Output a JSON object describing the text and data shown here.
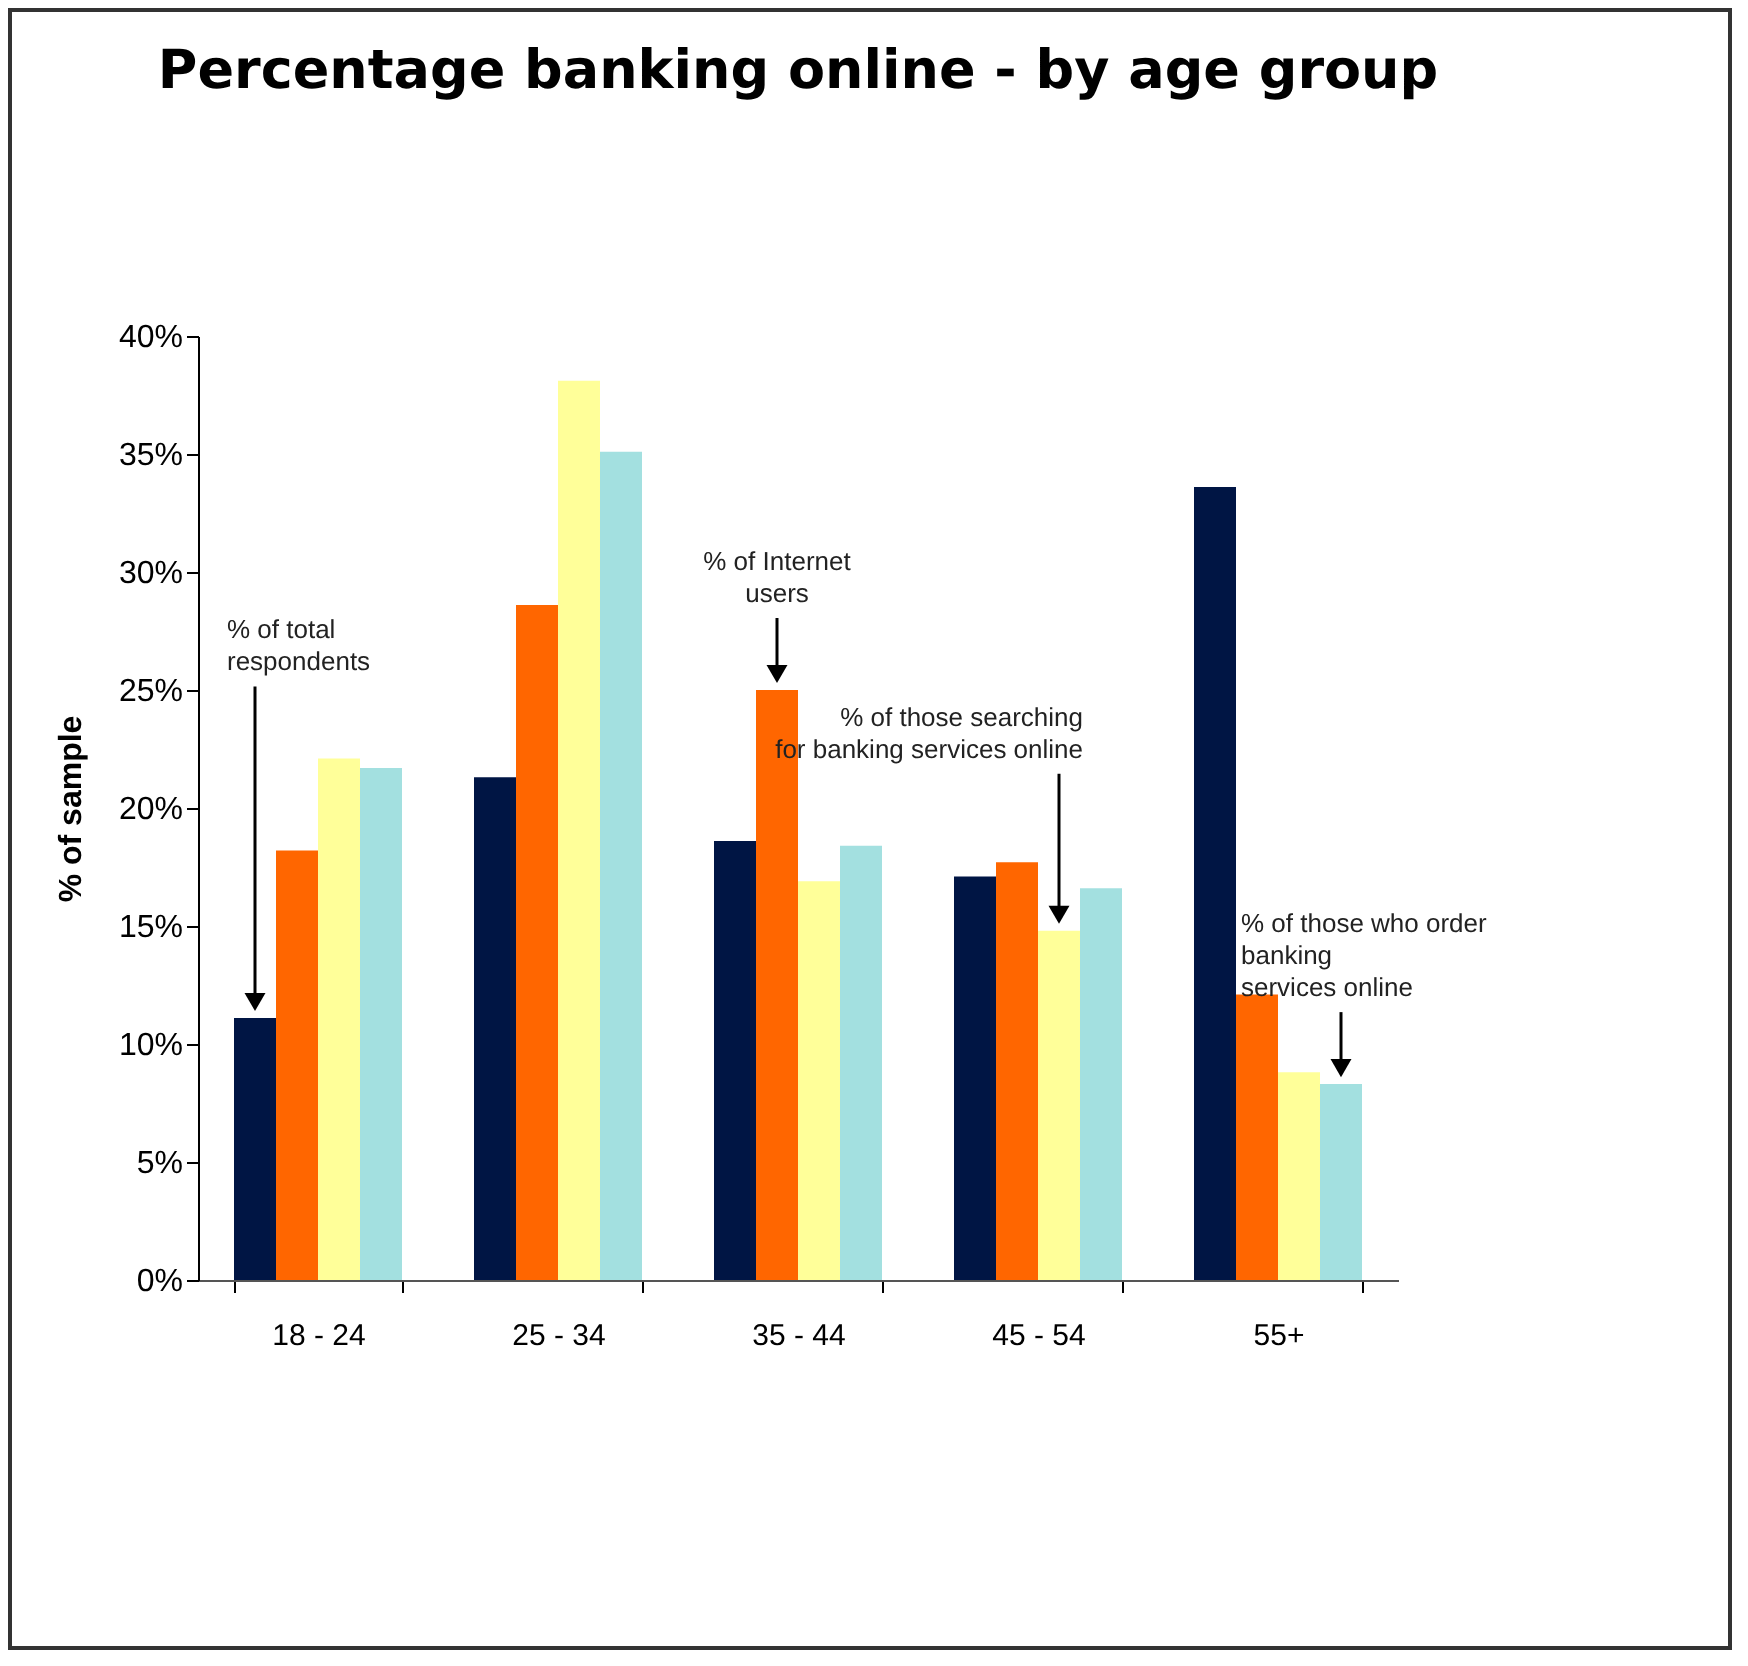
{
  "chart_data": {
    "type": "bar",
    "title": "Percentage banking online - by age group",
    "ylabel": "% of sample",
    "categories": [
      "18 - 24",
      "25 - 34",
      "35 - 44",
      "45 - 54",
      "55+"
    ],
    "series": [
      {
        "name": "% of total\n respondents",
        "color": "#001544",
        "values": [
          11.1,
          21.3,
          18.6,
          17.1,
          33.6
        ]
      },
      {
        "name": "% of Internet\nusers",
        "color": "#ff6600",
        "values": [
          18.2,
          28.6,
          25.0,
          17.7,
          12.1
        ]
      },
      {
        "name": "% of those searching\nfor banking services online",
        "color": "#ffff99",
        "values": [
          22.1,
          38.1,
          16.9,
          14.8,
          8.8
        ]
      },
      {
        "name": "% of those who order\nbanking\n services online",
        "color": "#a3e0e0",
        "values": [
          21.7,
          35.1,
          18.4,
          16.6,
          8.3
        ]
      }
    ],
    "ylim": [
      0,
      40
    ],
    "yticks": [
      {
        "value": 0,
        "label": "0%"
      },
      {
        "value": 5,
        "label": "5%"
      },
      {
        "value": 10,
        "label": "10%"
      },
      {
        "value": 15,
        "label": "15%"
      },
      {
        "value": 20,
        "label": "20%"
      },
      {
        "value": 25,
        "label": "25%"
      },
      {
        "value": 30,
        "label": "30%"
      },
      {
        "value": 35,
        "label": "35%"
      },
      {
        "value": 40,
        "label": "40%"
      }
    ],
    "grid": false,
    "legend": false
  }
}
